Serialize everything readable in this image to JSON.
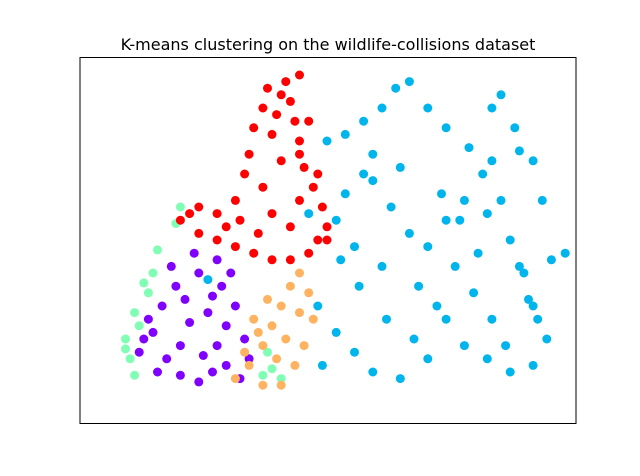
{
  "chart_data": {
    "type": "scatter",
    "title": "K-means clustering on the wildlife-collisions dataset",
    "xlabel": "",
    "ylabel": "",
    "xticks": false,
    "yticks": false,
    "grid": false,
    "legend": "none",
    "xlim": [
      0,
      100
    ],
    "ylim": [
      0,
      100
    ],
    "cluster_colors": [
      "#8000ff",
      "#80ffb4",
      "#00b5eb",
      "#ffb360",
      "#ff0000"
    ],
    "clusters": [
      {
        "label": "cluster-0",
        "color": "#8000ff",
        "points": [
          [
            12,
            22
          ],
          [
            15,
            14
          ],
          [
            18,
            9
          ],
          [
            22,
            7
          ],
          [
            25,
            10
          ],
          [
            28,
            12
          ],
          [
            31,
            8
          ],
          [
            26,
            18
          ],
          [
            20,
            25
          ],
          [
            14,
            30
          ],
          [
            17,
            36
          ],
          [
            22,
            40
          ],
          [
            27,
            36
          ],
          [
            30,
            30
          ],
          [
            28,
            24
          ],
          [
            24,
            28
          ],
          [
            18,
            18
          ],
          [
            13,
            10
          ],
          [
            9,
            16
          ],
          [
            11,
            26
          ],
          [
            16,
            42
          ],
          [
            21,
            46
          ],
          [
            26,
            44
          ],
          [
            29,
            40
          ],
          [
            32,
            20
          ],
          [
            33,
            14
          ],
          [
            19,
            32
          ],
          [
            25,
            33
          ],
          [
            10,
            20
          ],
          [
            23,
            15
          ]
        ]
      },
      {
        "label": "cluster-1",
        "color": "#80ffb4",
        "points": [
          [
            6,
            20
          ],
          [
            7,
            14
          ],
          [
            8,
            9
          ],
          [
            9,
            24
          ],
          [
            11,
            34
          ],
          [
            12,
            40
          ],
          [
            13,
            47
          ],
          [
            17,
            55
          ],
          [
            18,
            60
          ],
          [
            36,
            9
          ],
          [
            38,
            11
          ],
          [
            40,
            8
          ],
          [
            37,
            16
          ],
          [
            6,
            17
          ],
          [
            8,
            28
          ],
          [
            10,
            37
          ]
        ]
      },
      {
        "label": "cluster-2",
        "color": "#00b5eb",
        "points": [
          [
            48,
            30
          ],
          [
            52,
            22
          ],
          [
            56,
            16
          ],
          [
            60,
            10
          ],
          [
            66,
            8
          ],
          [
            72,
            14
          ],
          [
            76,
            26
          ],
          [
            70,
            36
          ],
          [
            62,
            42
          ],
          [
            56,
            48
          ],
          [
            52,
            56
          ],
          [
            54,
            64
          ],
          [
            58,
            70
          ],
          [
            60,
            76
          ],
          [
            54,
            82
          ],
          [
            50,
            80
          ],
          [
            58,
            86
          ],
          [
            62,
            90
          ],
          [
            65,
            96
          ],
          [
            68,
            98
          ],
          [
            60,
            68
          ],
          [
            64,
            60
          ],
          [
            68,
            52
          ],
          [
            72,
            48
          ],
          [
            76,
            56
          ],
          [
            80,
            62
          ],
          [
            84,
            70
          ],
          [
            86,
            74
          ],
          [
            88,
            62
          ],
          [
            90,
            50
          ],
          [
            92,
            42
          ],
          [
            94,
            32
          ],
          [
            96,
            26
          ],
          [
            98,
            20
          ],
          [
            95,
            12
          ],
          [
            90,
            10
          ],
          [
            85,
            14
          ],
          [
            80,
            18
          ],
          [
            78,
            42
          ],
          [
            74,
            30
          ],
          [
            82,
            34
          ],
          [
            86,
            26
          ],
          [
            89,
            18
          ],
          [
            93,
            40
          ],
          [
            99,
            44
          ],
          [
            97,
            62
          ],
          [
            95,
            74
          ],
          [
            91,
            84
          ],
          [
            86,
            90
          ],
          [
            92,
            77
          ],
          [
            102,
            46
          ],
          [
            95,
            30
          ],
          [
            88,
            94
          ],
          [
            72,
            90
          ],
          [
            76,
            84
          ],
          [
            66,
            72
          ],
          [
            81,
            78
          ],
          [
            85,
            58
          ],
          [
            63,
            26
          ],
          [
            69,
            20
          ],
          [
            75,
            64
          ],
          [
            79,
            56
          ],
          [
            83,
            46
          ],
          [
            57,
            36
          ],
          [
            53,
            44
          ],
          [
            49,
            12
          ],
          [
            46,
            58
          ],
          [
            24,
            38
          ]
        ]
      },
      {
        "label": "cluster-3",
        "color": "#ffb360",
        "points": [
          [
            30,
            8
          ],
          [
            33,
            12
          ],
          [
            36,
            18
          ],
          [
            38,
            24
          ],
          [
            40,
            30
          ],
          [
            42,
            36
          ],
          [
            44,
            40
          ],
          [
            46,
            34
          ],
          [
            47,
            26
          ],
          [
            45,
            18
          ],
          [
            43,
            12
          ],
          [
            40,
            6
          ],
          [
            36,
            6
          ],
          [
            32,
            16
          ],
          [
            34,
            26
          ],
          [
            37,
            32
          ],
          [
            41,
            20
          ],
          [
            44,
            28
          ],
          [
            39,
            14
          ],
          [
            35,
            22
          ]
        ]
      },
      {
        "label": "cluster-4",
        "color": "#ff0000",
        "points": [
          [
            18,
            56
          ],
          [
            22,
            52
          ],
          [
            26,
            50
          ],
          [
            30,
            48
          ],
          [
            34,
            46
          ],
          [
            38,
            44
          ],
          [
            42,
            44
          ],
          [
            46,
            46
          ],
          [
            48,
            50
          ],
          [
            50,
            54
          ],
          [
            49,
            60
          ],
          [
            47,
            66
          ],
          [
            45,
            72
          ],
          [
            44,
            80
          ],
          [
            43,
            86
          ],
          [
            42,
            92
          ],
          [
            40,
            94
          ],
          [
            36,
            90
          ],
          [
            34,
            84
          ],
          [
            33,
            76
          ],
          [
            32,
            70
          ],
          [
            30,
            62
          ],
          [
            26,
            58
          ],
          [
            22,
            60
          ],
          [
            38,
            58
          ],
          [
            42,
            54
          ],
          [
            36,
            66
          ],
          [
            40,
            74
          ],
          [
            38,
            82
          ],
          [
            44,
            62
          ],
          [
            28,
            54
          ],
          [
            20,
            58
          ],
          [
            46,
            86
          ],
          [
            44,
            76
          ],
          [
            50,
            50
          ],
          [
            35,
            52
          ],
          [
            41,
            98
          ],
          [
            44,
            100
          ],
          [
            37,
            96
          ],
          [
            48,
            70
          ],
          [
            31,
            56
          ],
          [
            39,
            88
          ]
        ]
      }
    ]
  }
}
